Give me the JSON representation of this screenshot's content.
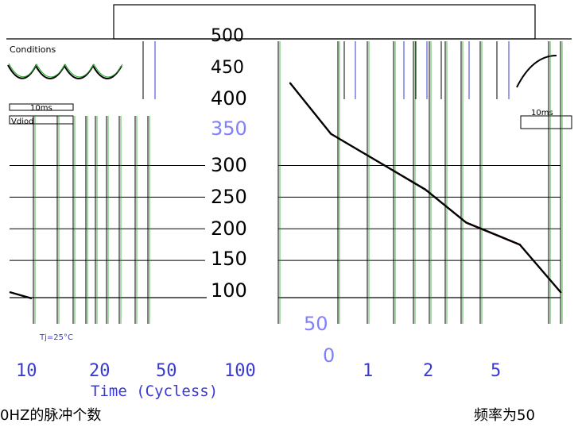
{
  "chart_data": {
    "type": "line",
    "title": "",
    "xlabel": "Time (Cycless)",
    "ylabel": "",
    "y_ticks": [
      500,
      450,
      400,
      350,
      300,
      250,
      200,
      150,
      100,
      50,
      0
    ],
    "x_ticks": [
      "10",
      "20",
      "50",
      "100",
      "1",
      "2",
      "5"
    ],
    "ylim": [
      0,
      500
    ],
    "x_scale": "log",
    "grid": true,
    "series": [
      {
        "x": [
          1,
          2,
          5,
          10,
          20,
          50,
          100
        ],
        "y": [
          430,
          350,
          300,
          262,
          210,
          175,
          100
        ]
      }
    ],
    "annotations": {
      "left_box_text_1": "10ms",
      "left_box_text_2": "Vdiod",
      "right_box_text": "10ms",
      "top_left_text": "Conditions",
      "tj_label": "Tj=25°C",
      "bottom_left_caption": "0HZ的脉冲个数",
      "bottom_right_caption": "频率为50"
    },
    "colors": {
      "curve": "#000000",
      "curve_shadow": "#cc0000",
      "grid_black": "#000000",
      "grid_green": "#1fa31f",
      "grid_blue": "#3a3ad0",
      "tick_ghost": "#8080ff"
    }
  }
}
